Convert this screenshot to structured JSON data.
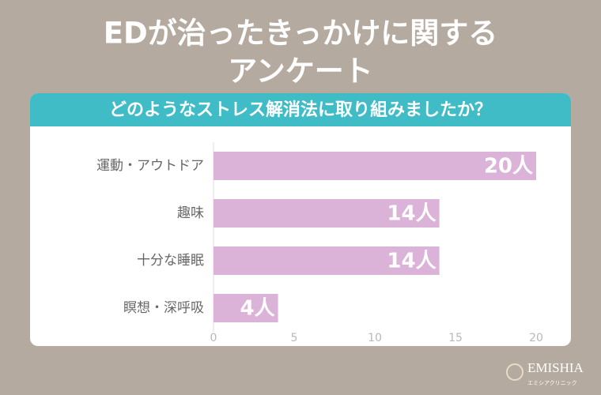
{
  "chart_data": {
    "type": "bar",
    "orientation": "horizontal",
    "title": [
      "EDが治ったきっかけに関する",
      "アンケート"
    ],
    "subtitle": "どのようなストレス解消法に取り組みましたか？",
    "categories": [
      "運動・アウトドア",
      "趣味",
      "十分な睡眠",
      "瞑想・深呼吸"
    ],
    "values": [
      20,
      14,
      14,
      4
    ],
    "value_labels": [
      "20人",
      "14人",
      "14人",
      "4人"
    ],
    "color": "#dbb2d8",
    "xlim": [
      0,
      20
    ],
    "xticks": [
      0,
      5,
      10,
      15,
      20
    ],
    "grid": false
  },
  "logo": {
    "name": "EMISHIA",
    "subtext": "エミシアクリニック"
  }
}
